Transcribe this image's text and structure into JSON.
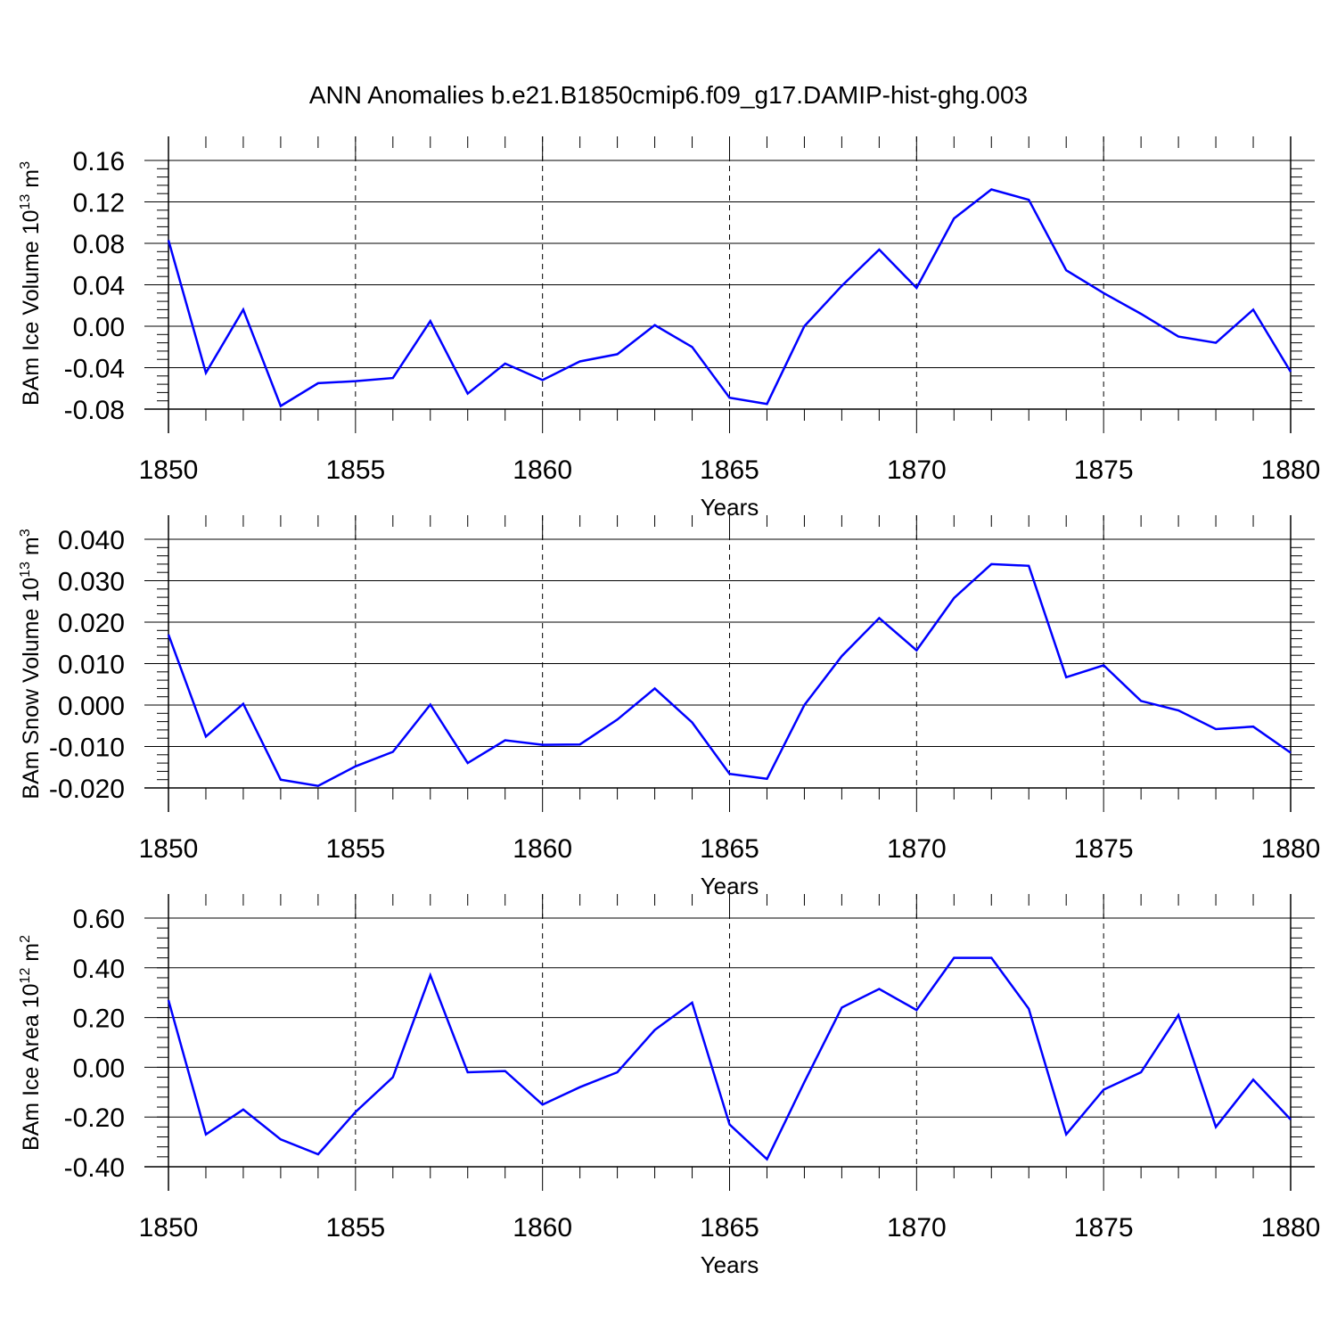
{
  "title": "ANN Anomalies b.e21.B1850cmip6.f09_g17.DAMIP-hist-ghg.003",
  "line_color": "#0000ff",
  "chart_data": [
    {
      "type": "line",
      "ylabel_prefix": "BAm Ice Volume 10",
      "ylabel_exp": "13",
      "ylabel_unit": " m",
      "ylabel_unit_exp": "3",
      "xlabel": "Years",
      "xlim": [
        1850,
        1880
      ],
      "ylim": [
        -0.08,
        0.16
      ],
      "yticks": [
        -0.08,
        -0.04,
        0.0,
        0.04,
        0.08,
        0.12,
        0.16
      ],
      "ytick_labels": [
        "-0.08",
        "-0.04",
        "0.00",
        "0.04",
        "0.08",
        "0.12",
        "0.16"
      ],
      "xticks": [
        1850,
        1855,
        1860,
        1865,
        1870,
        1875,
        1880
      ],
      "xtick_labels": [
        "1850",
        "1855",
        "1860",
        "1865",
        "1870",
        "1875",
        "1880"
      ],
      "x": [
        1850,
        1851,
        1852,
        1853,
        1854,
        1855,
        1856,
        1857,
        1858,
        1859,
        1860,
        1861,
        1862,
        1863,
        1864,
        1865,
        1866,
        1867,
        1868,
        1869,
        1870,
        1871,
        1872,
        1873,
        1874,
        1875,
        1876,
        1877,
        1878,
        1879,
        1880
      ],
      "values": [
        0.083,
        -0.045,
        0.016,
        -0.077,
        -0.055,
        -0.053,
        -0.05,
        0.005,
        -0.065,
        -0.036,
        -0.052,
        -0.034,
        -0.027,
        0.001,
        -0.02,
        -0.069,
        -0.075,
        0.0,
        0.039,
        0.074,
        0.037,
        0.104,
        0.132,
        0.122,
        0.054,
        0.032,
        0.012,
        -0.01,
        -0.016,
        0.016,
        -0.044
      ]
    },
    {
      "type": "line",
      "ylabel_prefix": "BAm Snow Volume 10",
      "ylabel_exp": "13",
      "ylabel_unit": " m",
      "ylabel_unit_exp": "3",
      "xlabel": "Years",
      "xlim": [
        1850,
        1880
      ],
      "ylim": [
        -0.02,
        0.04
      ],
      "yticks": [
        -0.02,
        -0.01,
        0.0,
        0.01,
        0.02,
        0.03,
        0.04
      ],
      "ytick_labels": [
        "-0.020",
        "-0.010",
        "0.000",
        "0.010",
        "0.020",
        "0.030",
        "0.040"
      ],
      "xticks": [
        1850,
        1855,
        1860,
        1865,
        1870,
        1875,
        1880
      ],
      "xtick_labels": [
        "1850",
        "1855",
        "1860",
        "1865",
        "1870",
        "1875",
        "1880"
      ],
      "x": [
        1850,
        1851,
        1852,
        1853,
        1854,
        1855,
        1856,
        1857,
        1858,
        1859,
        1860,
        1861,
        1862,
        1863,
        1864,
        1865,
        1866,
        1867,
        1868,
        1869,
        1870,
        1871,
        1872,
        1873,
        1874,
        1875,
        1876,
        1877,
        1878,
        1879,
        1880
      ],
      "values": [
        0.017,
        -0.0076,
        0.0003,
        -0.018,
        -0.0195,
        -0.0148,
        -0.0113,
        0.0001,
        -0.014,
        -0.0085,
        -0.0096,
        -0.0095,
        -0.0035,
        0.004,
        -0.0042,
        -0.0166,
        -0.0178,
        0.0,
        0.0118,
        0.021,
        0.0132,
        0.0258,
        0.034,
        0.0336,
        0.0067,
        0.0096,
        0.001,
        -0.0013,
        -0.0058,
        -0.0052,
        -0.0115
      ]
    },
    {
      "type": "line",
      "ylabel_prefix": "BAm Ice Area 10",
      "ylabel_exp": "12",
      "ylabel_unit": " m",
      "ylabel_unit_exp": "2",
      "xlabel": "Years",
      "xlim": [
        1850,
        1880
      ],
      "ylim": [
        -0.4,
        0.6
      ],
      "yticks": [
        -0.4,
        -0.2,
        0.0,
        0.2,
        0.4,
        0.6
      ],
      "ytick_labels": [
        "-0.40",
        "-0.20",
        "0.00",
        "0.20",
        "0.40",
        "0.60"
      ],
      "xticks": [
        1850,
        1855,
        1860,
        1865,
        1870,
        1875,
        1880
      ],
      "xtick_labels": [
        "1850",
        "1855",
        "1860",
        "1865",
        "1870",
        "1875",
        "1880"
      ],
      "x": [
        1850,
        1851,
        1852,
        1853,
        1854,
        1855,
        1856,
        1857,
        1858,
        1859,
        1860,
        1861,
        1862,
        1863,
        1864,
        1865,
        1866,
        1867,
        1868,
        1869,
        1870,
        1871,
        1872,
        1873,
        1874,
        1875,
        1876,
        1877,
        1878,
        1879,
        1880
      ],
      "values": [
        0.27,
        -0.27,
        -0.17,
        -0.29,
        -0.35,
        -0.18,
        -0.04,
        0.37,
        -0.02,
        -0.015,
        -0.15,
        -0.08,
        -0.02,
        0.15,
        0.26,
        -0.23,
        -0.37,
        -0.06,
        0.24,
        0.315,
        0.23,
        0.44,
        0.44,
        0.235,
        -0.27,
        -0.09,
        -0.02,
        0.21,
        -0.24,
        -0.05,
        -0.21
      ]
    }
  ]
}
